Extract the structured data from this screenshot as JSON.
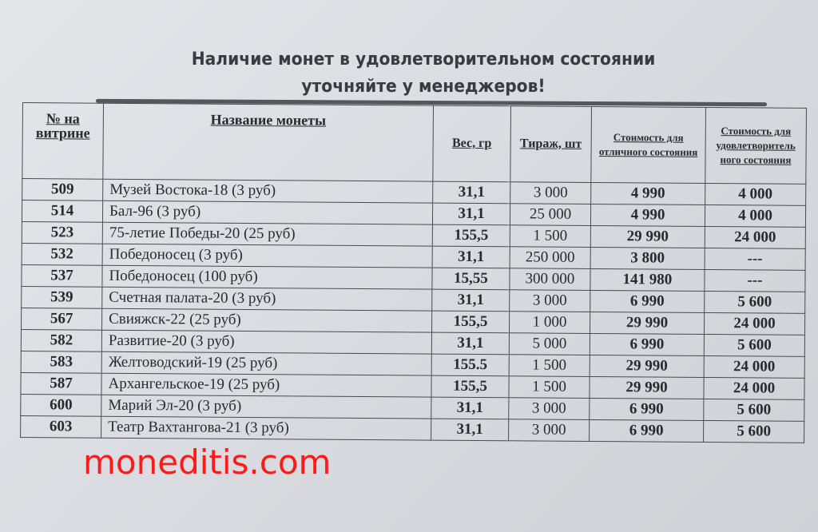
{
  "title": {
    "line1": "Наличие монет в удовлетворительном состоянии",
    "line2": "уточняйте у менеджеров!"
  },
  "table": {
    "headers": [
      "№ на витрине",
      "Название монеты",
      "Вес, гр",
      "Тираж, шт",
      "Стоимость для отличного состояния",
      "Стоимость для удовлетворитель ного состояния"
    ],
    "rows": [
      [
        "509",
        "Музей Востока-18 (3 руб)",
        "31,1",
        "3 000",
        "4 990",
        "4 000"
      ],
      [
        "514",
        "Бал-96 (3 руб)",
        "31,1",
        "25 000",
        "4 990",
        "4 000"
      ],
      [
        "523",
        "75-летие Победы-20 (25 руб)",
        "155,5",
        "1 500",
        "29 990",
        "24 000"
      ],
      [
        "532",
        "Победоносец (3 руб)",
        "31,1",
        "250 000",
        "3 800",
        "---"
      ],
      [
        "537",
        "Победоносец (100 руб)",
        "15,55",
        "300 000",
        "141 980",
        "---"
      ],
      [
        "539",
        "Счетная палата-20 (3 руб)",
        "31,1",
        "3 000",
        "6 990",
        "5 600"
      ],
      [
        "567",
        "Свияжск-22 (25 руб)",
        "155,5",
        "1 000",
        "29 990",
        "24 000"
      ],
      [
        "582",
        "Развитие-20 (3 руб)",
        "31,1",
        "5 000",
        "6 990",
        "5 600"
      ],
      [
        "583",
        "Желтоводский-19 (25 руб)",
        "155.5",
        "1 500",
        "29 990",
        "24 000"
      ],
      [
        "587",
        "Архангельское-19 (25 руб)",
        "155,5",
        "1 500",
        "29 990",
        "24 000"
      ],
      [
        "600",
        "Марий Эл-20 (3 руб)",
        "31,1",
        "3 000",
        "6 990",
        "5 600"
      ],
      [
        "603",
        "Театр Вахтангова-21 (3 руб)",
        "31,1",
        "3 000",
        "6 990",
        "5 600"
      ]
    ]
  },
  "watermark": "moneditis.com"
}
